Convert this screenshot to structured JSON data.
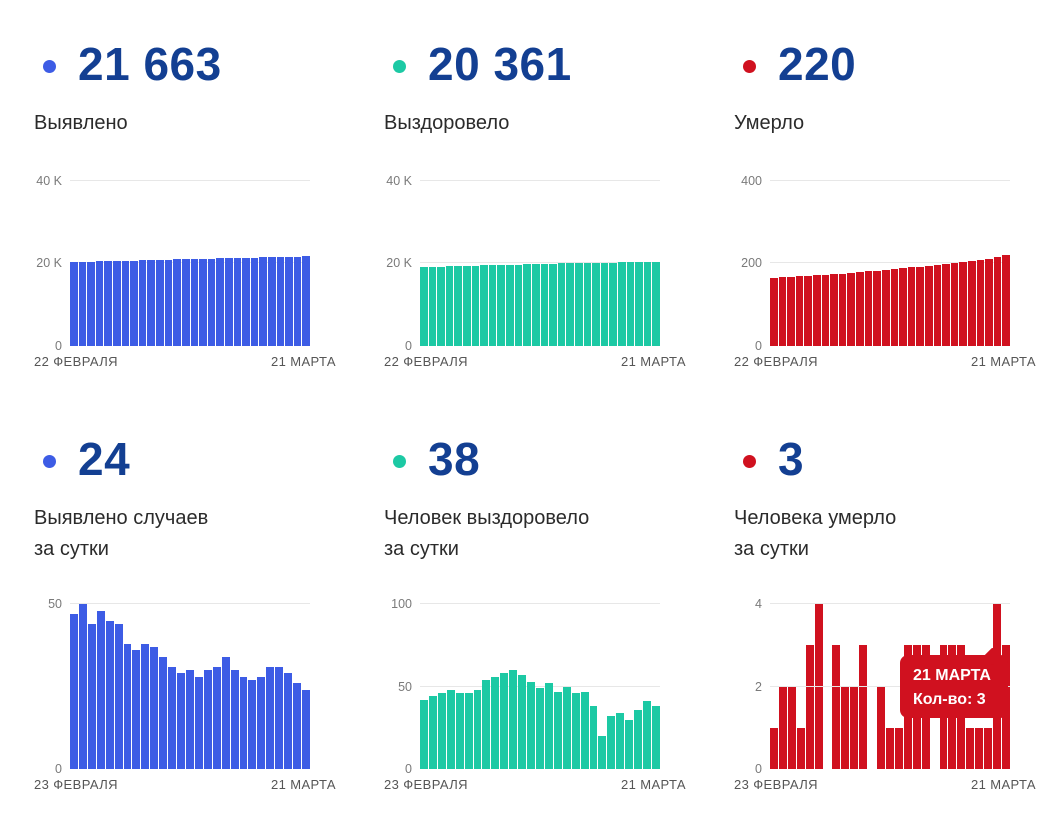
{
  "colors": {
    "blue": "#3d5ce5",
    "green": "#1cc9a4",
    "red": "#d0111f",
    "number_navy": "#133f92",
    "gridline": "#e7e7e7"
  },
  "panels": [
    {
      "value": "21 663",
      "label_line1": "Выявлено",
      "dot_color": "#3d5ce5"
    },
    {
      "value": "20 361",
      "label_line1": "Выздоровело",
      "dot_color": "#1cc9a4"
    },
    {
      "value": "220",
      "label_line1": "Умерло",
      "dot_color": "#d0111f"
    },
    {
      "value": "24",
      "label_line1": "Выявлено случаев",
      "label_line2": "за сутки",
      "dot_color": "#3d5ce5"
    },
    {
      "value": "38",
      "label_line1": "Человек выздоровело",
      "label_line2": "за сутки",
      "dot_color": "#1cc9a4"
    },
    {
      "value": "3",
      "label_line1": "Человека умерло",
      "label_line2": "за сутки",
      "dot_color": "#d0111f"
    }
  ],
  "chart_data": [
    {
      "type": "bar",
      "series_label": "Выявлено",
      "color": "#3d5ce5",
      "ymax": 40000,
      "y_ticks": [
        {
          "label": "40 K",
          "value": 40000
        },
        {
          "label": "20 K",
          "value": 20000
        },
        {
          "label": "0",
          "value": 0
        }
      ],
      "x_start": "22 ФЕВРАЛЯ",
      "x_end": "21 МАРТА",
      "values": [
        20300,
        20350,
        20400,
        20450,
        20500,
        20550,
        20600,
        20650,
        20700,
        20750,
        20800,
        20850,
        20900,
        20950,
        21000,
        21050,
        21100,
        21150,
        21200,
        21250,
        21300,
        21350,
        21400,
        21450,
        21500,
        21550,
        21600,
        21663
      ]
    },
    {
      "type": "bar",
      "series_label": "Выздоровело",
      "color": "#1cc9a4",
      "ymax": 40000,
      "y_ticks": [
        {
          "label": "40 K",
          "value": 40000
        },
        {
          "label": "20 K",
          "value": 20000
        },
        {
          "label": "0",
          "value": 0
        }
      ],
      "x_start": "22 ФЕВРАЛЯ",
      "x_end": "21 МАРТА",
      "values": [
        19100,
        19150,
        19200,
        19260,
        19320,
        19380,
        19430,
        19480,
        19530,
        19580,
        19630,
        19680,
        19730,
        19780,
        19830,
        19880,
        19930,
        19970,
        20010,
        20050,
        20090,
        20130,
        20170,
        20210,
        20250,
        20290,
        20330,
        20361
      ]
    },
    {
      "type": "bar",
      "series_label": "Умерло",
      "color": "#d0111f",
      "ymax": 400,
      "y_ticks": [
        {
          "label": "400",
          "value": 400
        },
        {
          "label": "200",
          "value": 200
        },
        {
          "label": "0",
          "value": 0
        }
      ],
      "x_start": "22 ФЕВРАЛЯ",
      "x_end": "21 МАРТА",
      "values": [
        165,
        166,
        167,
        168,
        169,
        171,
        172,
        174,
        175,
        177,
        179,
        180,
        182,
        184,
        186,
        188,
        190,
        192,
        194,
        196,
        198,
        200,
        202,
        205,
        208,
        211,
        215,
        220
      ]
    },
    {
      "type": "bar",
      "series_label": "Выявлено случаев за сутки",
      "color": "#3d5ce5",
      "ymax": 50,
      "y_ticks": [
        {
          "label": "50",
          "value": 50
        },
        {
          "label": "0",
          "value": 0
        }
      ],
      "x_start": "23 ФЕВРАЛЯ",
      "x_end": "21 МАРТА",
      "values": [
        47,
        50,
        44,
        48,
        45,
        44,
        38,
        36,
        38,
        37,
        34,
        31,
        29,
        30,
        28,
        30,
        31,
        34,
        30,
        28,
        27,
        28,
        31,
        31,
        29,
        26,
        24
      ]
    },
    {
      "type": "bar",
      "series_label": "Человек выздоровело за сутки",
      "color": "#1cc9a4",
      "ymax": 100,
      "y_ticks": [
        {
          "label": "100",
          "value": 100
        },
        {
          "label": "50",
          "value": 50
        },
        {
          "label": "0",
          "value": 0
        }
      ],
      "x_start": "23 ФЕВРАЛЯ",
      "x_end": "21 МАРТА",
      "values": [
        42,
        44,
        46,
        48,
        46,
        46,
        48,
        54,
        56,
        58,
        60,
        57,
        53,
        49,
        52,
        47,
        50,
        46,
        47,
        38,
        20,
        32,
        34,
        30,
        36,
        41,
        38
      ]
    },
    {
      "type": "bar",
      "series_label": "Человека умерло за сутки",
      "color": "#d0111f",
      "ymax": 4,
      "y_ticks": [
        {
          "label": "4",
          "value": 4
        },
        {
          "label": "2",
          "value": 2
        },
        {
          "label": "0",
          "value": 0
        }
      ],
      "x_start": "23 ФЕВРАЛЯ",
      "x_end": "21 МАРТА",
      "values": [
        1,
        2,
        2,
        1,
        3,
        4,
        0,
        3,
        2,
        2,
        3,
        0,
        2,
        1,
        1,
        3,
        3,
        3,
        0,
        3,
        3,
        3,
        1,
        1,
        1,
        4,
        3
      ],
      "tooltip": {
        "title": "21 МАРТА",
        "text": "Кол-во: 3"
      }
    }
  ]
}
